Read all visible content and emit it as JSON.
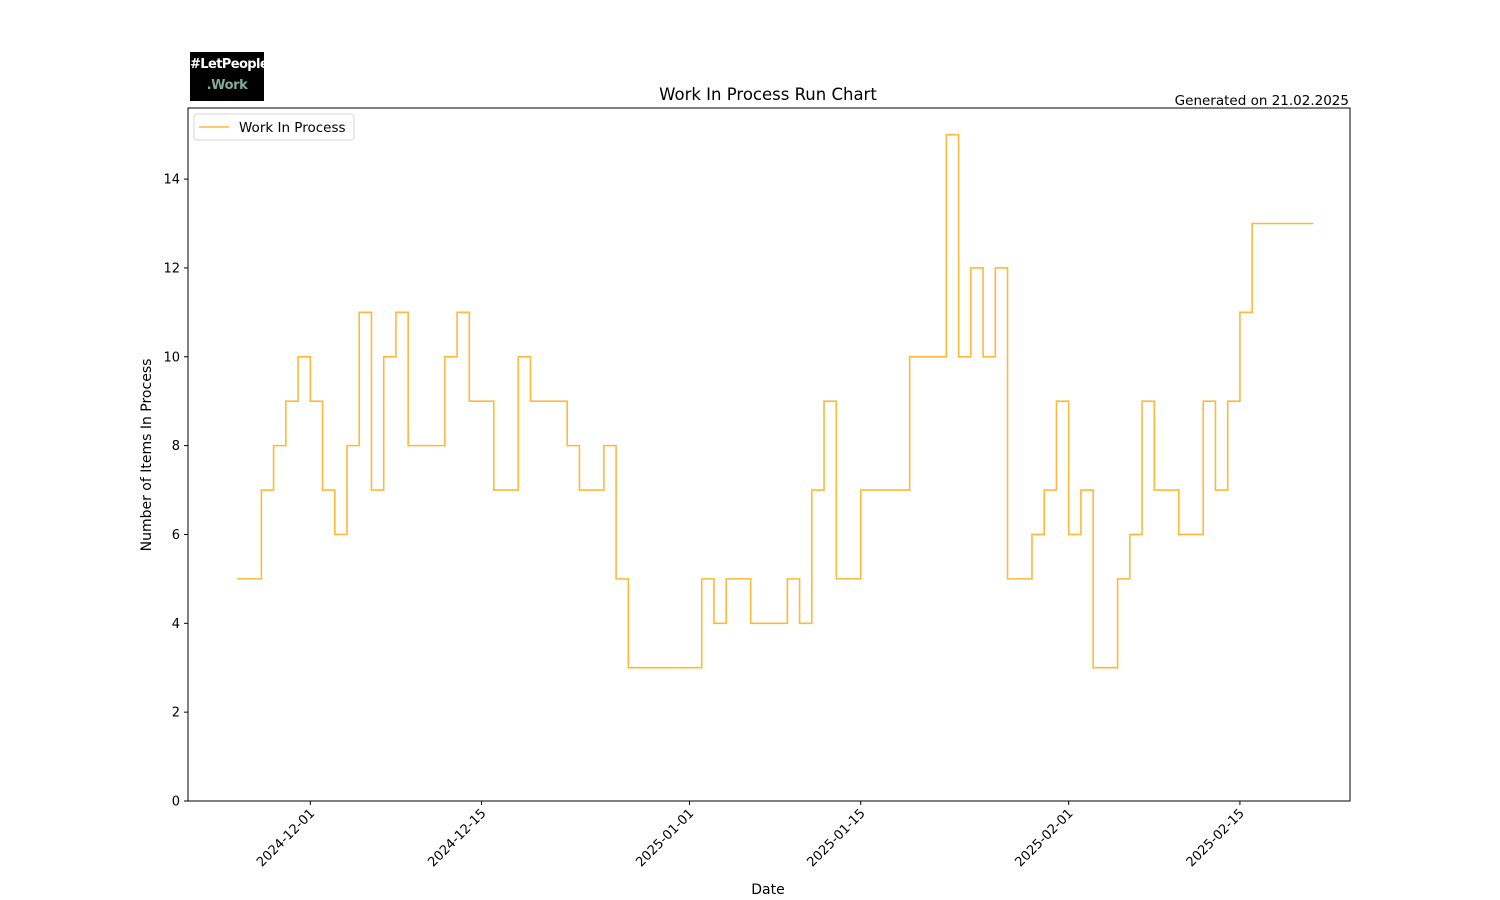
{
  "logo": {
    "line1": "#LetPeople",
    "line2": ".Work"
  },
  "generated_text": "Generated on 21.02.2025",
  "chart_data": {
    "type": "line",
    "step": "post",
    "title": "Work In Process Run Chart",
    "xlabel": "Date",
    "ylabel": "Number of Items In Process",
    "x_range": [
      "2024-11-21",
      "2025-02-24"
    ],
    "ylim": [
      0,
      15.6
    ],
    "y_ticks": [
      0,
      2,
      4,
      6,
      8,
      10,
      12,
      14
    ],
    "x_ticks": [
      "2024-12-01",
      "2024-12-15",
      "2025-01-01",
      "2025-01-15",
      "2025-02-01",
      "2025-02-15"
    ],
    "grid": false,
    "legend": "upper-left",
    "color": "#FFB83A",
    "series": [
      {
        "name": "Work In Process",
        "x": [
          "2024-11-25",
          "2024-11-26",
          "2024-11-27",
          "2024-11-28",
          "2024-11-29",
          "2024-11-30",
          "2024-12-01",
          "2024-12-02",
          "2024-12-03",
          "2024-12-04",
          "2024-12-05",
          "2024-12-06",
          "2024-12-07",
          "2024-12-08",
          "2024-12-09",
          "2024-12-10",
          "2024-12-11",
          "2024-12-12",
          "2024-12-13",
          "2024-12-14",
          "2024-12-15",
          "2024-12-16",
          "2024-12-17",
          "2024-12-18",
          "2024-12-19",
          "2024-12-20",
          "2024-12-21",
          "2024-12-22",
          "2024-12-23",
          "2024-12-24",
          "2024-12-25",
          "2024-12-26",
          "2024-12-27",
          "2024-12-28",
          "2024-12-29",
          "2024-12-30",
          "2024-12-31",
          "2025-01-01",
          "2025-01-02",
          "2025-01-03",
          "2025-01-04",
          "2025-01-05",
          "2025-01-06",
          "2025-01-07",
          "2025-01-08",
          "2025-01-09",
          "2025-01-10",
          "2025-01-11",
          "2025-01-12",
          "2025-01-13",
          "2025-01-14",
          "2025-01-15",
          "2025-01-16",
          "2025-01-17",
          "2025-01-18",
          "2025-01-19",
          "2025-01-20",
          "2025-01-21",
          "2025-01-22",
          "2025-01-23",
          "2025-01-24",
          "2025-01-25",
          "2025-01-26",
          "2025-01-27",
          "2025-01-28",
          "2025-01-29",
          "2025-01-30",
          "2025-01-31",
          "2025-02-01",
          "2025-02-02",
          "2025-02-03",
          "2025-02-04",
          "2025-02-05",
          "2025-02-06",
          "2025-02-07",
          "2025-02-08",
          "2025-02-09",
          "2025-02-10",
          "2025-02-11",
          "2025-02-12",
          "2025-02-13",
          "2025-02-14",
          "2025-02-15",
          "2025-02-16",
          "2025-02-17",
          "2025-02-18",
          "2025-02-19",
          "2025-02-20",
          "2025-02-21"
        ],
        "values": [
          5,
          5,
          7,
          8,
          9,
          10,
          9,
          7,
          6,
          8,
          11,
          7,
          10,
          11,
          8,
          8,
          8,
          10,
          11,
          9,
          9,
          7,
          7,
          10,
          9,
          9,
          9,
          8,
          7,
          7,
          8,
          5,
          3,
          3,
          3,
          3,
          3,
          3,
          5,
          4,
          5,
          5,
          4,
          4,
          4,
          5,
          4,
          7,
          9,
          5,
          5,
          7,
          7,
          7,
          7,
          10,
          10,
          10,
          15,
          10,
          12,
          10,
          12,
          5,
          5,
          6,
          7,
          9,
          6,
          7,
          3,
          3,
          5,
          6,
          9,
          7,
          7,
          6,
          6,
          9,
          7,
          9,
          11,
          13,
          13,
          13,
          13,
          13,
          13
        ]
      }
    ]
  }
}
